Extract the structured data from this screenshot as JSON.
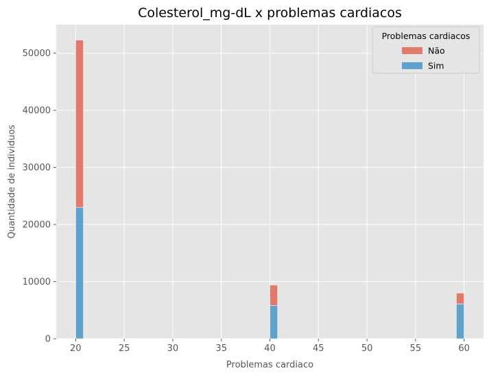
{
  "chart_data": {
    "type": "bar",
    "stacked": true,
    "title": "Colesterol_mg-dL x problemas cardiacos",
    "xlabel": "Problemas cardiaco",
    "ylabel": "Quantidade de individuos",
    "xlim": [
      18.0,
      62.0
    ],
    "ylim": [
      0,
      55000
    ],
    "xticks": [
      20,
      25,
      30,
      35,
      40,
      45,
      50,
      55,
      60
    ],
    "yticks": [
      0,
      10000,
      20000,
      30000,
      40000,
      50000
    ],
    "grid": true,
    "legend": {
      "title": "Problemas cardiacos",
      "position": "top-right"
    },
    "bins": [
      {
        "x_start": 20.0,
        "x_end": 20.8
      },
      {
        "x_start": 40.0,
        "x_end": 40.8
      },
      {
        "x_start": 59.2,
        "x_end": 60.0
      }
    ],
    "series": [
      {
        "name": "Sim",
        "color": "#5fa2cb",
        "values": [
          23000,
          5800,
          6100
        ]
      },
      {
        "name": "Não",
        "color": "#e27a6b",
        "values": [
          29300,
          3600,
          1900
        ]
      }
    ],
    "legend_order": [
      "Não",
      "Sim"
    ]
  }
}
